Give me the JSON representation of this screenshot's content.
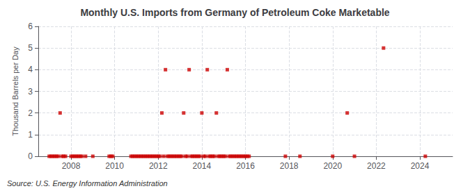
{
  "chart_data": {
    "type": "scatter",
    "title": "Monthly U.S. Imports from Germany of Petroleum Coke Marketable",
    "ylabel": "Thousand Barrels per Day",
    "annotation": "Source: U.S. Energy Information Administration",
    "color": "#cc0000",
    "marker": "square",
    "grid": true,
    "xlim": [
      2006.5,
      2025.5
    ],
    "xticks": [
      2008,
      2010,
      2012,
      2014,
      2016,
      2018,
      2020,
      2022,
      2024
    ],
    "ylim": [
      0,
      6
    ],
    "yticks": [
      0,
      1,
      2,
      3,
      4,
      5,
      6
    ],
    "x": [
      2007.0,
      2007.083,
      2007.167,
      2007.25,
      2007.333,
      2007.417,
      2007.5,
      2007.583,
      2007.667,
      2007.75,
      2008.0,
      2008.083,
      2008.167,
      2008.25,
      2008.333,
      2008.417,
      2008.5,
      2008.667,
      2009.0,
      2009.75,
      2009.833,
      2009.917,
      2010.75,
      2010.833,
      2010.917,
      2011.0,
      2011.083,
      2011.167,
      2011.25,
      2011.333,
      2011.417,
      2011.5,
      2011.583,
      2011.667,
      2011.75,
      2011.833,
      2011.917,
      2012.0,
      2012.083,
      2012.167,
      2012.25,
      2012.333,
      2012.417,
      2012.5,
      2012.583,
      2012.667,
      2012.75,
      2012.833,
      2012.917,
      2013.0,
      2013.083,
      2013.167,
      2013.25,
      2013.333,
      2013.417,
      2013.5,
      2013.583,
      2013.667,
      2013.75,
      2013.833,
      2013.917,
      2014.0,
      2014.083,
      2014.167,
      2014.25,
      2014.333,
      2014.417,
      2014.5,
      2014.583,
      2014.667,
      2014.75,
      2014.833,
      2014.917,
      2015.0,
      2015.083,
      2015.167,
      2015.25,
      2015.333,
      2015.417,
      2015.5,
      2015.583,
      2015.667,
      2015.75,
      2015.833,
      2015.917,
      2016.0,
      2016.083,
      2016.167,
      2017.833,
      2018.5,
      2020.0,
      2020.667,
      2021.0,
      2022.333,
      2024.25
    ],
    "values": [
      0,
      0,
      0,
      0,
      0,
      0,
      2,
      0,
      0,
      0,
      0,
      0,
      0,
      0,
      0,
      0,
      0,
      0,
      0,
      0,
      0,
      0,
      0,
      0,
      0,
      0,
      0,
      0,
      0,
      0,
      0,
      0,
      0,
      0,
      0,
      0,
      0,
      0,
      0,
      2,
      0,
      4,
      0,
      0,
      0,
      0,
      0,
      0,
      0,
      0,
      0,
      2,
      0,
      0,
      4,
      0,
      0,
      0,
      0,
      0,
      0,
      2,
      0,
      0,
      4,
      0,
      0,
      0,
      0,
      2,
      0,
      0,
      0,
      0,
      0,
      4,
      0,
      0,
      0,
      0,
      0,
      0,
      0,
      0,
      0,
      0,
      0,
      0,
      0,
      0,
      0,
      2,
      0,
      5,
      0
    ]
  }
}
